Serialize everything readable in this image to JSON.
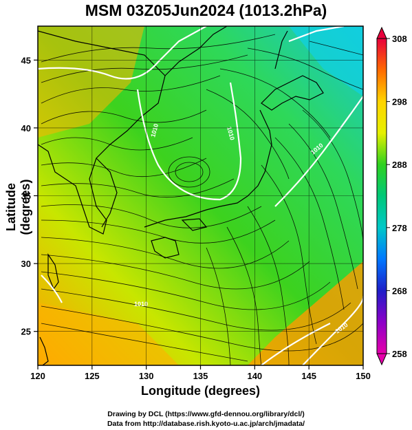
{
  "title": "MSM 03Z05Jun2024 (1013.2hPa)",
  "axes": {
    "xlabel": "Longitude (degrees)",
    "ylabel": "Latitude  (degrees)",
    "x_ticks": [
      "120",
      "125",
      "130",
      "135",
      "140",
      "145",
      "150"
    ],
    "y_ticks": [
      "25",
      "30",
      "35",
      "40",
      "45"
    ]
  },
  "colorbar": {
    "tick_labels": [
      "308",
      "298",
      "288",
      "278",
      "268",
      "258"
    ],
    "colors": [
      "#e8003c",
      "#ff6a00",
      "#ffa500",
      "#ffd400",
      "#e6f000",
      "#9ee600",
      "#2ed11f",
      "#00c878",
      "#00c8c8",
      "#0078ff",
      "#1e1ec8",
      "#8c00c8",
      "#e600aa"
    ]
  },
  "contour_labels": [
    "1010",
    "1010",
    "1010",
    "1010",
    "1010"
  ],
  "chart_data": {
    "type": "heatmap",
    "title": "MSM 03Z05Jun2024 (1013.2hPa)",
    "xlabel": "Longitude (degrees)",
    "ylabel": "Latitude  (degrees)",
    "xlim": [
      120,
      150
    ],
    "ylim": [
      22.5,
      47.5
    ],
    "colorbar_range": [
      258,
      308
    ],
    "colorbar_ticks": [
      258,
      268,
      278,
      288,
      298,
      308
    ],
    "grid": true
  },
  "credits": {
    "line1": "Drawing by DCL (https://www.gfd-dennou.org/library/dcl/)",
    "line2": "Data from http://database.rish.kyoto-u.ac.jp/arch/jmadata/"
  }
}
